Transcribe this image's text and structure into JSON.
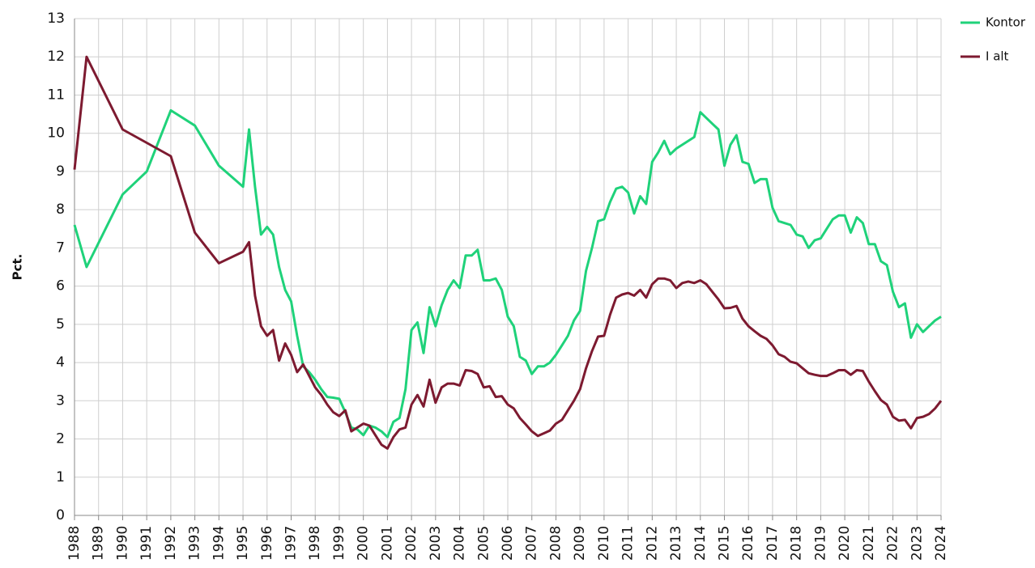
{
  "chart_data": {
    "type": "line",
    "ylabel": "Pct.",
    "xlim": [
      1988,
      2024
    ],
    "xticks": [
      1988,
      1989,
      1990,
      1991,
      1992,
      1993,
      1994,
      1995,
      1996,
      1997,
      1998,
      1999,
      2000,
      2001,
      2002,
      2003,
      2004,
      2005,
      2006,
      2007,
      2008,
      2009,
      2010,
      2011,
      2012,
      2013,
      2014,
      2015,
      2016,
      2017,
      2018,
      2019,
      2020,
      2021,
      2022,
      2023,
      2024
    ],
    "ylim": [
      0,
      13
    ],
    "yticks": [
      0,
      1,
      2,
      3,
      4,
      5,
      6,
      7,
      8,
      9,
      10,
      11,
      12,
      13
    ],
    "grid": true,
    "legend": "top-right",
    "x": [
      1988,
      1988.5,
      1990,
      1991,
      1992,
      1993,
      1994,
      1995,
      1995.25,
      1995.5,
      1995.75,
      1996,
      1996.25,
      1996.5,
      1996.75,
      1997,
      1997.25,
      1997.5,
      1997.75,
      1998,
      1998.25,
      1998.5,
      1998.75,
      1999,
      1999.25,
      1999.5,
      1999.75,
      2000,
      2000.25,
      2000.5,
      2000.75,
      2001,
      2001.25,
      2001.5,
      2001.75,
      2002,
      2002.25,
      2002.5,
      2002.75,
      2003,
      2003.25,
      2003.5,
      2003.75,
      2004,
      2004.25,
      2004.5,
      2004.75,
      2005,
      2005.25,
      2005.5,
      2005.75,
      2006,
      2006.25,
      2006.5,
      2006.75,
      2007,
      2007.25,
      2007.5,
      2007.75,
      2008,
      2008.25,
      2008.5,
      2008.75,
      2009,
      2009.25,
      2009.5,
      2009.75,
      2010,
      2010.25,
      2010.5,
      2010.75,
      2011,
      2011.25,
      2011.5,
      2011.75,
      2012,
      2012.25,
      2012.5,
      2012.75,
      2013,
      2013.25,
      2013.5,
      2013.75,
      2014,
      2014.25,
      2014.5,
      2014.75,
      2015,
      2015.25,
      2015.5,
      2015.75,
      2016,
      2016.25,
      2016.5,
      2016.75,
      2017,
      2017.25,
      2017.5,
      2017.75,
      2018,
      2018.25,
      2018.5,
      2018.75,
      2019,
      2019.25,
      2019.5,
      2019.75,
      2020,
      2020.25,
      2020.5,
      2020.75,
      2021,
      2021.25,
      2021.5,
      2021.75,
      2022,
      2022.25,
      2022.5,
      2022.75,
      2023,
      2023.25,
      2023.5,
      2023.75,
      2024
    ],
    "series": [
      {
        "name": "Kontor",
        "color": "#1fd27a",
        "values": [
          7.6,
          6.5,
          8.4,
          9.0,
          10.6,
          10.2,
          9.15,
          8.6,
          10.1,
          8.6,
          7.35,
          7.55,
          7.35,
          6.5,
          5.9,
          5.6,
          4.7,
          3.9,
          3.75,
          3.55,
          3.3,
          3.1,
          3.08,
          3.05,
          2.7,
          2.3,
          2.25,
          2.1,
          2.35,
          2.3,
          2.2,
          2.05,
          2.45,
          2.55,
          3.3,
          4.85,
          5.05,
          4.25,
          5.45,
          4.95,
          5.5,
          5.9,
          6.15,
          5.95,
          6.8,
          6.8,
          6.95,
          6.15,
          6.15,
          6.2,
          5.9,
          5.2,
          4.95,
          4.15,
          4.05,
          3.7,
          3.9,
          3.9,
          4.0,
          4.2,
          4.45,
          4.7,
          5.1,
          5.35,
          6.4,
          7.0,
          7.7,
          7.75,
          8.2,
          8.55,
          8.6,
          8.45,
          7.9,
          8.35,
          8.15,
          9.25,
          9.5,
          9.8,
          9.45,
          9.6,
          9.7,
          9.8,
          9.9,
          10.55,
          10.4,
          10.25,
          10.1,
          9.15,
          9.7,
          9.95,
          9.25,
          9.2,
          8.7,
          8.8,
          8.8,
          8.05,
          7.7,
          7.65,
          7.6,
          7.35,
          7.3,
          7.0,
          7.2,
          7.25,
          7.5,
          7.75,
          7.85,
          7.85,
          7.4,
          7.8,
          7.65,
          7.1,
          7.1,
          6.65,
          6.55,
          5.85,
          5.45,
          5.55,
          4.65,
          5.0,
          4.8,
          4.95,
          5.1,
          5.2
        ]
      },
      {
        "name": "I alt",
        "color": "#7d1a30",
        "values": [
          9.05,
          12.0,
          10.1,
          9.75,
          9.4,
          7.4,
          6.6,
          6.9,
          7.15,
          5.75,
          4.95,
          4.7,
          4.85,
          4.05,
          4.5,
          4.2,
          3.75,
          3.95,
          3.65,
          3.35,
          3.15,
          2.9,
          2.7,
          2.6,
          2.75,
          2.2,
          2.3,
          2.4,
          2.35,
          2.1,
          1.85,
          1.75,
          2.05,
          2.25,
          2.3,
          2.9,
          3.15,
          2.85,
          3.55,
          2.95,
          3.35,
          3.45,
          3.45,
          3.4,
          3.8,
          3.78,
          3.7,
          3.35,
          3.38,
          3.1,
          3.12,
          2.9,
          2.8,
          2.55,
          2.38,
          2.2,
          2.08,
          2.15,
          2.22,
          2.4,
          2.5,
          2.75,
          3.0,
          3.3,
          3.85,
          4.3,
          4.68,
          4.7,
          5.25,
          5.7,
          5.78,
          5.82,
          5.75,
          5.9,
          5.7,
          6.05,
          6.2,
          6.2,
          6.15,
          5.95,
          6.08,
          6.12,
          6.08,
          6.15,
          6.05,
          5.85,
          5.65,
          5.42,
          5.43,
          5.48,
          5.15,
          4.95,
          4.82,
          4.7,
          4.62,
          4.45,
          4.22,
          4.15,
          4.02,
          3.98,
          3.85,
          3.72,
          3.68,
          3.65,
          3.65,
          3.72,
          3.8,
          3.8,
          3.68,
          3.8,
          3.78,
          3.5,
          3.25,
          3.02,
          2.9,
          2.58,
          2.48,
          2.5,
          2.28,
          2.55,
          2.58,
          2.65,
          2.8,
          3.0
        ]
      }
    ]
  }
}
